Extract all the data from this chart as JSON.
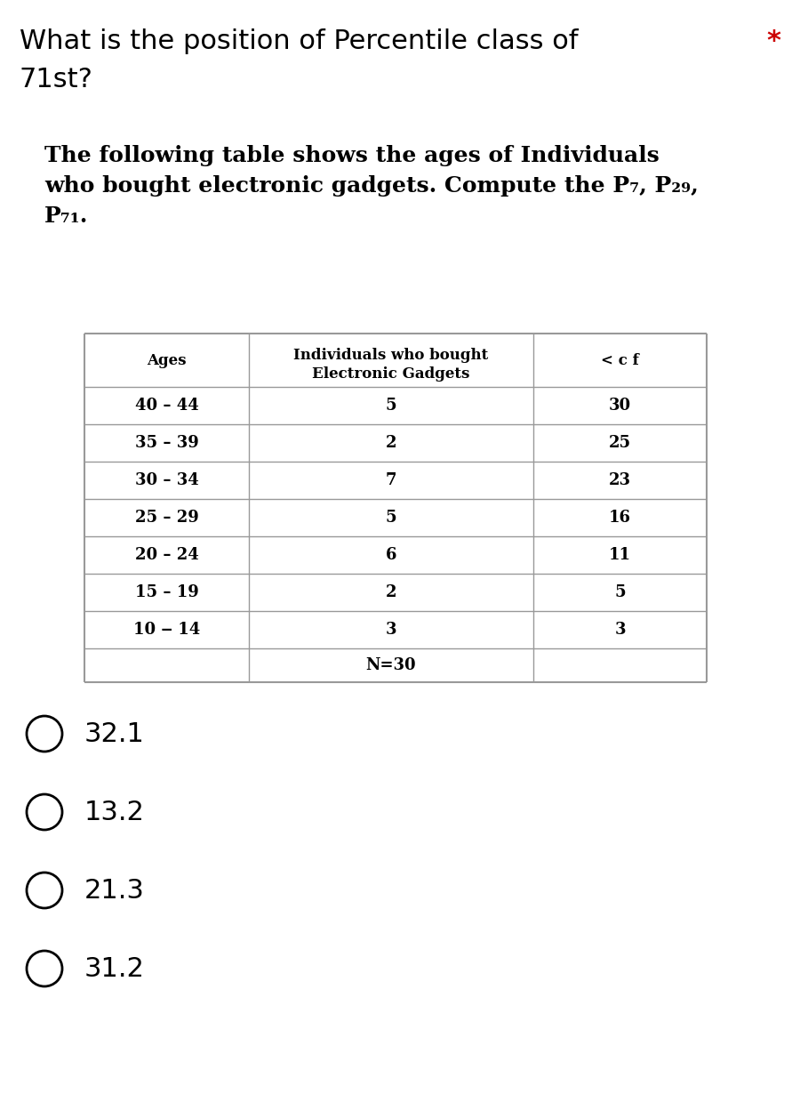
{
  "question_line1": "What is the position of Percentile class of",
  "question_line2": "71st?",
  "asterisk": "*",
  "subtitle_lines": [
    "The following table shows the ages of Individuals",
    "who bought electronic gadgets. Compute the P₇, P₂₉,",
    "P₇₁."
  ],
  "table_headers": [
    "Ages",
    "Individuals who bought\nElectronic Gadgets",
    "< c f"
  ],
  "table_rows": [
    [
      "40 – 44",
      "5",
      "30"
    ],
    [
      "35 – 39",
      "2",
      "25"
    ],
    [
      "30 – 34",
      "7",
      "23"
    ],
    [
      "25 – 29",
      "5",
      "16"
    ],
    [
      "20 – 24",
      "6",
      "11"
    ],
    [
      "15 – 19",
      "2",
      "5"
    ],
    [
      "10 ‒ 14",
      "3",
      "3"
    ]
  ],
  "table_footer": "N=30",
  "options": [
    "32.1",
    "13.2",
    "21.3",
    "31.2"
  ],
  "bg_color": "#ffffff",
  "text_color": "#000000",
  "asterisk_color": "#cc0000",
  "table_line_color": "#999999",
  "option_font_size": 22,
  "question_font_size": 22,
  "subtitle_font_size": 18,
  "table_font_size": 13,
  "header_font_size": 12
}
